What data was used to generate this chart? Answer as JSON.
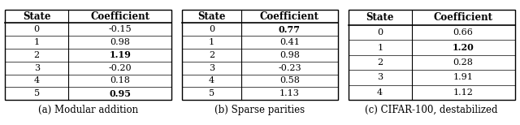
{
  "tables": [
    {
      "caption": "(a) Modular addition",
      "headers": [
        "State",
        "Coefficient"
      ],
      "rows": [
        [
          "0",
          "-0.15",
          false,
          false
        ],
        [
          "1",
          "0.98",
          false,
          false
        ],
        [
          "2",
          "1.19",
          false,
          true
        ],
        [
          "3",
          "-0.20",
          false,
          false
        ],
        [
          "4",
          "0.18",
          false,
          false
        ],
        [
          "5",
          "0.95",
          false,
          true
        ]
      ]
    },
    {
      "caption": "(b) Sparse parities",
      "headers": [
        "State",
        "Coefficient"
      ],
      "rows": [
        [
          "0",
          "0.77",
          false,
          true
        ],
        [
          "1",
          "0.41",
          false,
          false
        ],
        [
          "2",
          "0.98",
          false,
          false
        ],
        [
          "3",
          "-0.23",
          false,
          false
        ],
        [
          "4",
          "0.58",
          false,
          false
        ],
        [
          "5",
          "1.13",
          false,
          false
        ]
      ]
    },
    {
      "caption": "(c) CIFAR-100, destabilized",
      "headers": [
        "State",
        "Coefficient"
      ],
      "rows": [
        [
          "0",
          "0.66",
          false,
          false
        ],
        [
          "1",
          "1.20",
          false,
          true
        ],
        [
          "2",
          "0.28",
          false,
          false
        ],
        [
          "3",
          "1.91",
          false,
          false
        ],
        [
          "4",
          "1.12",
          false,
          false
        ]
      ]
    }
  ],
  "background_color": "#ffffff",
  "header_fontsize": 8.5,
  "cell_fontsize": 8.0,
  "caption_fontsize": 8.5,
  "fig_width": 6.4,
  "fig_height": 1.54
}
